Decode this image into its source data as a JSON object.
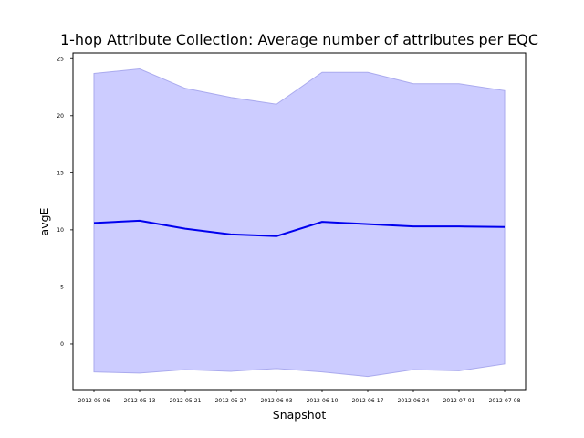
{
  "chart_data": {
    "type": "area",
    "title": "1-hop Attribute Collection: Average number of attributes per EQC",
    "xlabel": "Snapshot",
    "ylabel": "avgE",
    "x": [
      "2012-05-06",
      "2012-05-13",
      "2012-05-21",
      "2012-05-27",
      "2012-06-03",
      "2012-06-10",
      "2012-06-17",
      "2012-06-24",
      "2012-07-01",
      "2012-07-08"
    ],
    "yticks": [
      0,
      5,
      10,
      15,
      20,
      25
    ],
    "ylim": [
      -4,
      25.5
    ],
    "grid": false,
    "legend": "none",
    "series": [
      {
        "values": [
          10.6,
          10.8,
          10.1,
          9.6,
          9.45,
          10.7,
          10.5,
          10.3,
          10.3,
          10.25
        ],
        "upper": [
          23.7,
          24.1,
          22.4,
          21.6,
          21.0,
          23.8,
          23.8,
          22.8,
          22.8,
          22.2
        ],
        "lower": [
          -2.45,
          -2.55,
          -2.25,
          -2.4,
          -2.15,
          -2.45,
          -2.85,
          -2.25,
          -2.35,
          -1.75
        ],
        "line_color": "#0000ee",
        "fill_color": "#ccccff",
        "fill_edge_color": "#aaaaee"
      }
    ]
  }
}
